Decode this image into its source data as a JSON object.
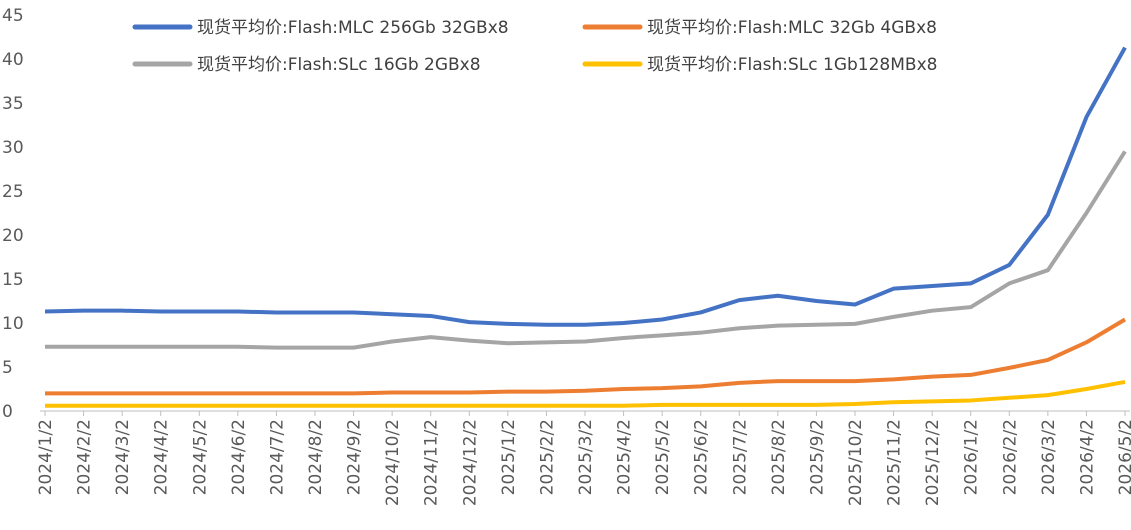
{
  "chart_data": {
    "type": "line",
    "categories": [
      "2024/1/2",
      "2024/2/2",
      "2024/3/2",
      "2024/4/2",
      "2024/5/2",
      "2024/6/2",
      "2024/7/2",
      "2024/8/2",
      "2024/9/2",
      "2024/10/2",
      "2024/11/2",
      "2024/12/2",
      "2025/1/2",
      "2025/2/2",
      "2025/3/2",
      "2025/4/2",
      "2025/5/2",
      "2025/6/2",
      "2025/7/2",
      "2025/8/2",
      "2025/9/2",
      "2025/10/2",
      "2025/11/2",
      "2025/12/2",
      "2026/1/2",
      "2026/2/2",
      "2026/3/2",
      "2026/4/2",
      "2026/5/2"
    ],
    "series": [
      {
        "name": "现货平均价:Flash:MLC 256Gb 32GBx8",
        "color": "#4472c4",
        "values": [
          11.3,
          11.4,
          11.4,
          11.3,
          11.3,
          11.3,
          11.2,
          11.2,
          11.2,
          11.0,
          10.8,
          10.1,
          9.9,
          9.8,
          9.8,
          10.0,
          10.4,
          11.2,
          12.6,
          13.1,
          12.5,
          12.1,
          13.9,
          14.2,
          14.5,
          16.6,
          22.3,
          33.4,
          41.3
        ]
      },
      {
        "name": "现货平均价:Flash:MLC 32Gb 4GBx8",
        "color": "#ed7d31",
        "values": [
          2.0,
          2.0,
          2.0,
          2.0,
          2.0,
          2.0,
          2.0,
          2.0,
          2.0,
          2.1,
          2.1,
          2.1,
          2.2,
          2.2,
          2.3,
          2.5,
          2.6,
          2.8,
          3.2,
          3.4,
          3.4,
          3.4,
          3.6,
          3.9,
          4.1,
          4.9,
          5.8,
          7.8,
          10.4
        ]
      },
      {
        "name": "现货平均价:Flash:SLc 16Gb 2GBx8",
        "color": "#a5a5a5",
        "values": [
          7.3,
          7.3,
          7.3,
          7.3,
          7.3,
          7.3,
          7.2,
          7.2,
          7.2,
          7.9,
          8.4,
          8.0,
          7.7,
          7.8,
          7.9,
          8.3,
          8.6,
          8.9,
          9.4,
          9.7,
          9.8,
          9.9,
          10.7,
          11.4,
          11.8,
          14.5,
          16.0,
          22.5,
          29.5
        ]
      },
      {
        "name": "现货平均价:Flash:SLc 1Gb128MBx8",
        "color": "#ffc000",
        "values": [
          0.6,
          0.6,
          0.6,
          0.6,
          0.6,
          0.6,
          0.6,
          0.6,
          0.6,
          0.6,
          0.6,
          0.6,
          0.6,
          0.6,
          0.6,
          0.6,
          0.7,
          0.7,
          0.7,
          0.7,
          0.7,
          0.8,
          1.0,
          1.1,
          1.2,
          1.5,
          1.8,
          2.5,
          3.3
        ]
      }
    ],
    "ylim": [
      0,
      45
    ],
    "yticks": [
      0,
      5,
      10,
      15,
      20,
      25,
      30,
      35,
      40,
      45
    ],
    "grid": false
  }
}
